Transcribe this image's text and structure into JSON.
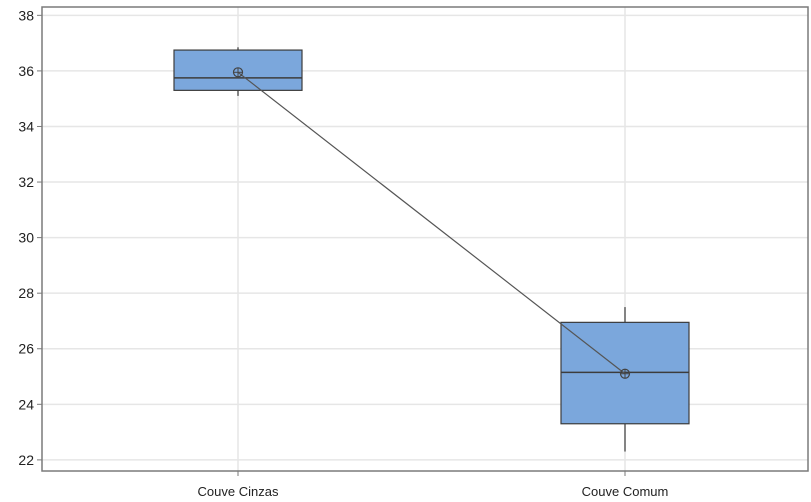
{
  "chart_data": {
    "type": "boxplot",
    "title": "",
    "xlabel": "",
    "ylabel": "",
    "ylim": [
      21.6,
      38.3
    ],
    "yticks": [
      22,
      24,
      26,
      28,
      30,
      32,
      34,
      36,
      38
    ],
    "ytick_labels": [
      "22",
      "24",
      "26",
      "28",
      "30",
      "32",
      "34",
      "36",
      "38"
    ],
    "categories": [
      "Couve Cinzas",
      "Couve Comum"
    ],
    "boxes": [
      {
        "category": "Couve Cinzas",
        "whisker_low": 35.1,
        "q1": 35.3,
        "median": 35.75,
        "q3": 36.75,
        "whisker_high": 36.85,
        "mean": 35.95
      },
      {
        "category": "Couve Comum",
        "whisker_low": 22.3,
        "q1": 23.3,
        "median": 25.15,
        "q3": 26.95,
        "whisker_high": 27.5,
        "mean": 25.1
      }
    ],
    "mean_connect_line": true,
    "grid": true,
    "legend": "none",
    "colors": {
      "box_fill": "#7ba7dc",
      "box_stroke": "#3c3c3c",
      "grid": "#e6e6e6",
      "frame": "#7a7a7a",
      "connect_line": "#555555"
    }
  }
}
